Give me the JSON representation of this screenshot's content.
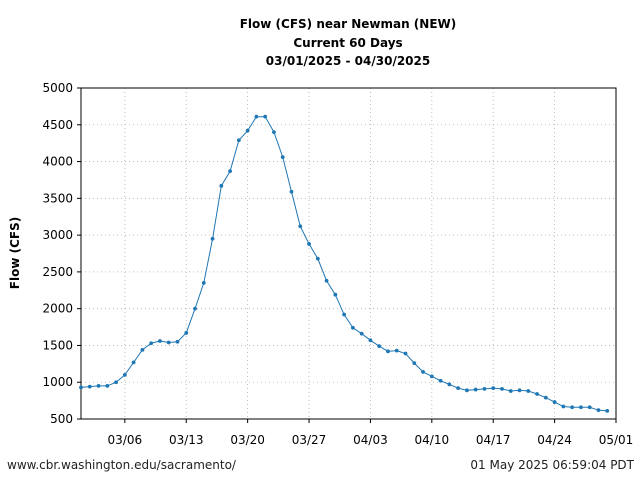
{
  "chart_data": {
    "type": "line",
    "title_lines": [
      "Flow (CFS) near Newman (NEW)",
      "Current 60 Days",
      "03/01/2025 - 04/30/2025"
    ],
    "xlabel": "",
    "ylabel": "Flow (CFS)",
    "ylim": [
      500,
      5000
    ],
    "yticks": [
      500,
      1000,
      1500,
      2000,
      2500,
      3000,
      3500,
      4000,
      4500,
      5000
    ],
    "xlim": [
      "2025-03-01",
      "2025-05-01"
    ],
    "xticks": [
      {
        "date": "2025-03-06",
        "label": "03/06"
      },
      {
        "date": "2025-03-13",
        "label": "03/13"
      },
      {
        "date": "2025-03-20",
        "label": "03/20"
      },
      {
        "date": "2025-03-27",
        "label": "03/27"
      },
      {
        "date": "2025-04-03",
        "label": "04/03"
      },
      {
        "date": "2025-04-10",
        "label": "04/10"
      },
      {
        "date": "2025-04-17",
        "label": "04/17"
      },
      {
        "date": "2025-04-24",
        "label": "04/24"
      },
      {
        "date": "2025-05-01",
        "label": "05/01"
      }
    ],
    "grid": true,
    "color": "#1f77b4",
    "series": [
      {
        "x": [
          "2025-03-01",
          "2025-03-02",
          "2025-03-03",
          "2025-03-04",
          "2025-03-05",
          "2025-03-06",
          "2025-03-07",
          "2025-03-08",
          "2025-03-09",
          "2025-03-10",
          "2025-03-11",
          "2025-03-12",
          "2025-03-13",
          "2025-03-14",
          "2025-03-15",
          "2025-03-16",
          "2025-03-17",
          "2025-03-18",
          "2025-03-19",
          "2025-03-20",
          "2025-03-21",
          "2025-03-22",
          "2025-03-23",
          "2025-03-24",
          "2025-03-25",
          "2025-03-26",
          "2025-03-27",
          "2025-03-28",
          "2025-03-29",
          "2025-03-30",
          "2025-03-31",
          "2025-04-01",
          "2025-04-02",
          "2025-04-03",
          "2025-04-04",
          "2025-04-05",
          "2025-04-06",
          "2025-04-07",
          "2025-04-08",
          "2025-04-09",
          "2025-04-10",
          "2025-04-11",
          "2025-04-12",
          "2025-04-13",
          "2025-04-14",
          "2025-04-15",
          "2025-04-16",
          "2025-04-17",
          "2025-04-18",
          "2025-04-19",
          "2025-04-20",
          "2025-04-21",
          "2025-04-22",
          "2025-04-23",
          "2025-04-24",
          "2025-04-25",
          "2025-04-26",
          "2025-04-27",
          "2025-04-28",
          "2025-04-29",
          "2025-04-30"
        ],
        "values": [
          930,
          940,
          950,
          950,
          1000,
          1100,
          1270,
          1440,
          1530,
          1560,
          1540,
          1550,
          1670,
          2000,
          2350,
          2950,
          3670,
          3870,
          4290,
          4420,
          4610,
          4610,
          4400,
          4060,
          3590,
          3120,
          2880,
          2680,
          2380,
          2190,
          1920,
          1740,
          1660,
          1570,
          1490,
          1420,
          1430,
          1390,
          1260,
          1140,
          1080,
          1020,
          970,
          920,
          890,
          900,
          910,
          920,
          910,
          880,
          890,
          880,
          840,
          790,
          730,
          670,
          660,
          660,
          660,
          620,
          610
        ]
      }
    ]
  },
  "footer": {
    "left": "www.cbr.washington.edu/sacramento/",
    "right": "01 May 2025 06:59:04 PDT"
  }
}
